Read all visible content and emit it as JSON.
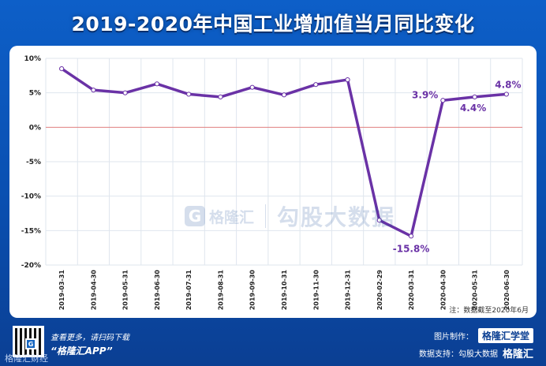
{
  "title": "2019-2020年中国工业增加值当月同比变化",
  "watermark": {
    "logo_letter": "G",
    "name": "格隆汇",
    "right": "勾股大数据"
  },
  "note": "注：数据截至2020年6月",
  "footer": {
    "scan_line1": "查看更多，请扫码下载",
    "scan_line2": "“格隆汇APP”",
    "left_brand": "格隆汇财经",
    "credit1_label": "图片制作：",
    "credit1_brand": "格隆汇学堂",
    "credit2_label": "数据支持：勾股大数据",
    "credit2_brand": "格隆汇"
  },
  "colors": {
    "line": "#6a32a6",
    "zero_line": "#e08080",
    "label": "#6a32a6",
    "grid": "#dfe6ee"
  },
  "chart_data": {
    "type": "line",
    "categories": [
      "2019-03-31",
      "2019-04-30",
      "2019-05-31",
      "2019-06-30",
      "2019-07-31",
      "2019-08-31",
      "2019-09-30",
      "2019-10-31",
      "2019-11-30",
      "2019-12-31",
      "2020-02-29",
      "2020-03-31",
      "2020-04-30",
      "2020-05-31",
      "2020-06-30"
    ],
    "series": [
      {
        "values": [
          8.5,
          5.4,
          5.0,
          6.3,
          4.8,
          4.4,
          5.8,
          4.7,
          6.2,
          6.9,
          -13.5,
          -15.8,
          3.9,
          4.4,
          4.8
        ]
      }
    ],
    "ylim": [
      -20,
      10
    ],
    "yticks": [
      10,
      5,
      0,
      -5,
      -10,
      -15,
      -20
    ],
    "ytick_labels": [
      "10%",
      "5%",
      "0%",
      "-5%",
      "-10%",
      "-15%",
      "-20%"
    ],
    "data_labels": [
      {
        "index": 11,
        "text": "-15.8%"
      },
      {
        "index": 12,
        "text": "3.9%"
      },
      {
        "index": 13,
        "text": "4.4%"
      },
      {
        "index": 14,
        "text": "4.8%"
      }
    ],
    "grid": true,
    "legend": "none"
  }
}
